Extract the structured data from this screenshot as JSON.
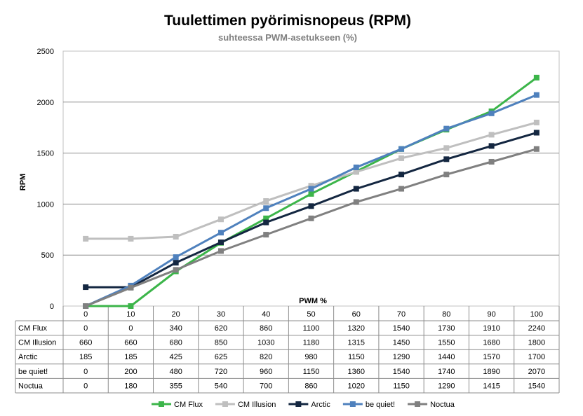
{
  "chart_data": {
    "type": "line",
    "title": "Tuulettimen pyörimisnopeus (RPM)",
    "subtitle": "suhteessa PWM-asetukseen (%)",
    "xlabel": "PWM %",
    "ylabel": "RPM",
    "x": [
      0,
      10,
      20,
      30,
      40,
      50,
      60,
      70,
      80,
      90,
      100
    ],
    "ylim": [
      0,
      2500
    ],
    "yticks": [
      0,
      500,
      1000,
      1500,
      2000,
      2500
    ],
    "grid": true,
    "legend_position": "bottom",
    "data_table": true,
    "series": [
      {
        "name": "CM Flux",
        "color": "#3cb54a",
        "values": [
          0,
          0,
          340,
          620,
          860,
          1100,
          1320,
          1540,
          1730,
          1910,
          2240
        ]
      },
      {
        "name": "CM Illusion",
        "color": "#bfbfbf",
        "values": [
          660,
          660,
          680,
          850,
          1030,
          1180,
          1315,
          1450,
          1550,
          1680,
          1800
        ]
      },
      {
        "name": "Arctic",
        "color": "#142741",
        "values": [
          185,
          185,
          425,
          625,
          820,
          980,
          1150,
          1290,
          1440,
          1570,
          1700
        ]
      },
      {
        "name": "be quiet!",
        "color": "#4f81bd",
        "values": [
          0,
          200,
          480,
          720,
          960,
          1150,
          1360,
          1540,
          1740,
          1890,
          2070
        ]
      },
      {
        "name": "Noctua",
        "color": "#808080",
        "values": [
          0,
          180,
          355,
          540,
          700,
          860,
          1020,
          1150,
          1290,
          1415,
          1540
        ]
      }
    ]
  }
}
